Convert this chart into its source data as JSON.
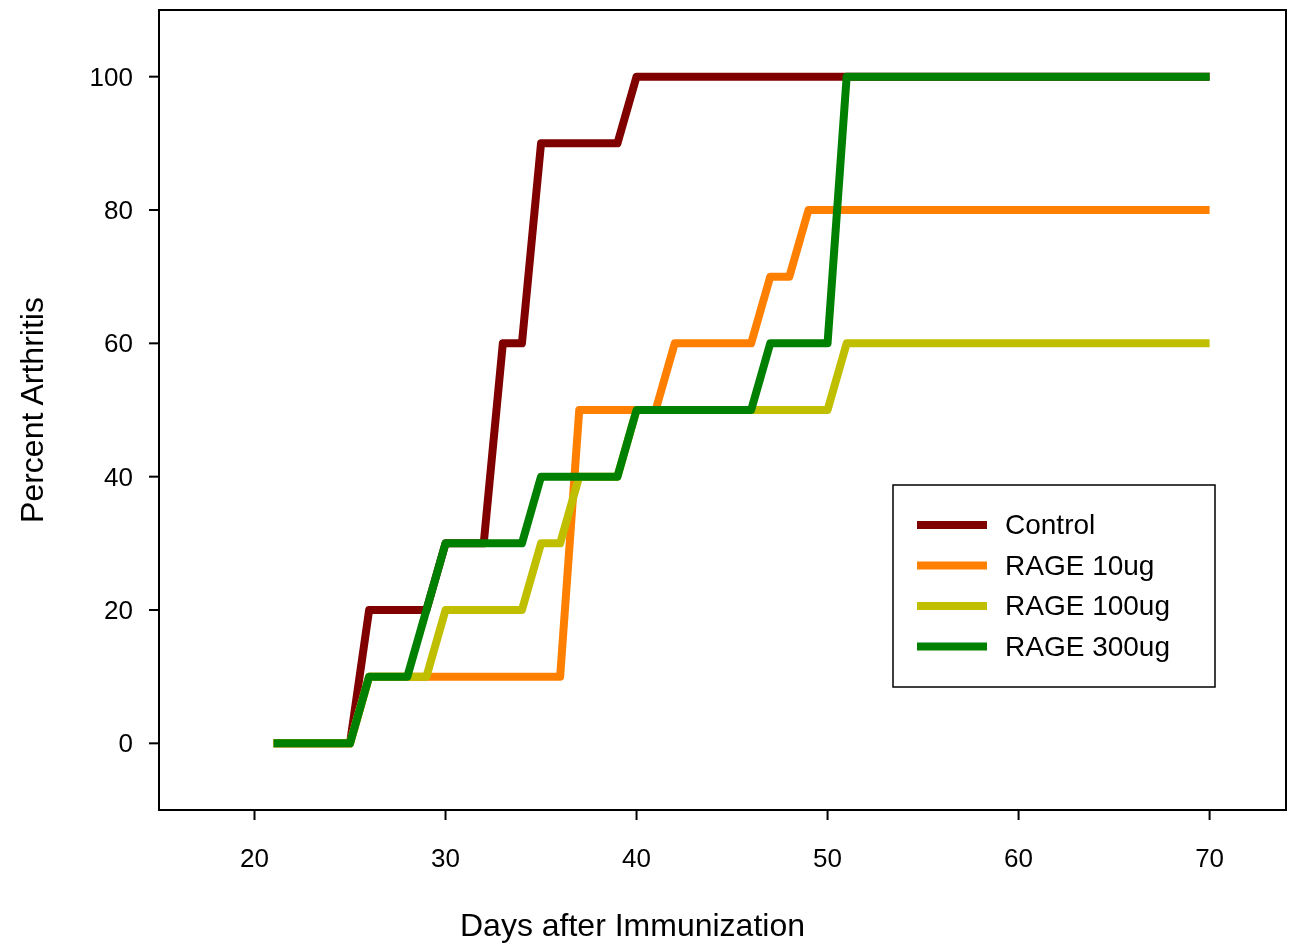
{
  "chart_data": {
    "type": "line",
    "xlabel": "Days after Immunization",
    "ylabel": "Percent Arthritis",
    "xlim": [
      15,
      74
    ],
    "ylim": [
      -10,
      110
    ],
    "xticks": [
      20,
      30,
      40,
      50,
      60,
      70
    ],
    "yticks": [
      0,
      20,
      40,
      60,
      80,
      100
    ],
    "grid": false,
    "legend": "right",
    "marker": "none",
    "line_style": "solid",
    "series": [
      {
        "name": "Control",
        "color": "#800000",
        "x": [
          21,
          25,
          26,
          29,
          30,
          32,
          33,
          34,
          35,
          39,
          40,
          70
        ],
        "values": [
          0,
          0,
          20,
          20,
          30,
          30,
          60,
          60,
          90,
          90,
          100,
          100
        ]
      },
      {
        "name": "RAGE 10ug",
        "color": "#ff8000",
        "x": [
          21,
          25,
          26,
          36,
          37,
          41,
          42,
          46,
          47,
          48,
          49,
          70
        ],
        "values": [
          0,
          0,
          10,
          10,
          50,
          50,
          60,
          60,
          70,
          70,
          80,
          80
        ]
      },
      {
        "name": "RAGE 100ug",
        "color": "#bfbf00",
        "x": [
          21,
          25,
          26,
          29,
          30,
          34,
          35,
          36,
          37,
          39,
          40,
          50,
          51,
          70
        ],
        "values": [
          0,
          0,
          10,
          10,
          20,
          20,
          30,
          30,
          40,
          40,
          50,
          50,
          60,
          60
        ]
      },
      {
        "name": "RAGE 300ug",
        "color": "#008000",
        "x": [
          21,
          25,
          26,
          28,
          30,
          34,
          35,
          39,
          40,
          46,
          47,
          50,
          51,
          70
        ],
        "values": [
          0,
          0,
          10,
          10,
          30,
          30,
          40,
          40,
          50,
          50,
          60,
          60,
          100,
          100
        ]
      }
    ]
  }
}
